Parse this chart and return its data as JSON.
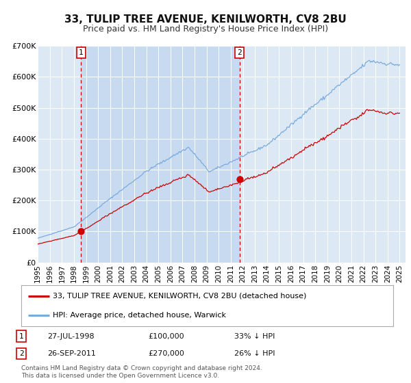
{
  "title": "33, TULIP TREE AVENUE, KENILWORTH, CV8 2BU",
  "subtitle": "Price paid vs. HM Land Registry's House Price Index (HPI)",
  "title_fontsize": 11,
  "subtitle_fontsize": 9,
  "background_color": "#ffffff",
  "plot_bg_color": "#dce9f5",
  "shaded_bg_color": "#c8daf0",
  "grid_color": "#ffffff",
  "hpi_color": "#7aaadd",
  "price_color": "#cc0000",
  "ylim": [
    0,
    700000
  ],
  "yticks": [
    0,
    100000,
    200000,
    300000,
    400000,
    500000,
    600000,
    700000
  ],
  "ytick_labels": [
    "£0",
    "£100K",
    "£200K",
    "£300K",
    "£400K",
    "£500K",
    "£600K",
    "£700K"
  ],
  "xlim_start": 1995.0,
  "xlim_end": 2025.5,
  "xtick_years": [
    1995,
    1996,
    1997,
    1998,
    1999,
    2000,
    2001,
    2002,
    2003,
    2004,
    2005,
    2006,
    2007,
    2008,
    2009,
    2010,
    2011,
    2012,
    2013,
    2014,
    2015,
    2016,
    2017,
    2018,
    2019,
    2020,
    2021,
    2022,
    2023,
    2024,
    2025
  ],
  "transaction1_x": 1998.57,
  "transaction1_y": 100000,
  "transaction1_label": "1",
  "transaction1_date": "27-JUL-1998",
  "transaction1_price": "£100,000",
  "transaction1_hpi": "33% ↓ HPI",
  "transaction2_x": 2011.74,
  "transaction2_y": 270000,
  "transaction2_label": "2",
  "transaction2_date": "26-SEP-2011",
  "transaction2_price": "£270,000",
  "transaction2_hpi": "26% ↓ HPI",
  "legend_line1": "33, TULIP TREE AVENUE, KENILWORTH, CV8 2BU (detached house)",
  "legend_line2": "HPI: Average price, detached house, Warwick",
  "footer1": "Contains HM Land Registry data © Crown copyright and database right 2024.",
  "footer2": "This data is licensed under the Open Government Licence v3.0."
}
